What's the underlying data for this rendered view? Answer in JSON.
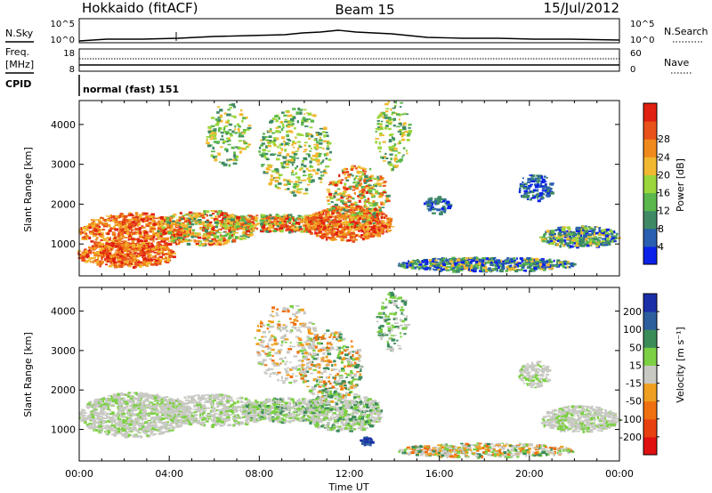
{
  "header": {
    "station": "Hokkaido (fitACF)",
    "beam": "Beam 15",
    "date": "15/Jul/2012"
  },
  "top_panels": {
    "nsky": {
      "label": "N.Sky",
      "ticks": [
        "10^5",
        "10^0"
      ]
    },
    "nsearch": {
      "label": "N.Search",
      "ticks": [
        "10^5",
        "10^0"
      ]
    },
    "freq": {
      "label_line1": "Freq.",
      "label_line2": "[MHz]",
      "ticks": [
        "18",
        "8"
      ]
    },
    "nave": {
      "label": "Nave",
      "ticks": [
        "60",
        "0"
      ]
    },
    "cpid": {
      "label": "CPID",
      "value": "normal (fast) 151"
    }
  },
  "chart_data": [
    {
      "type": "heatmap",
      "title": "",
      "xlabel": "Time UT",
      "ylabel": "Slant Range [km]",
      "x_ticks": [
        "00:00",
        "04:00",
        "08:00",
        "12:00",
        "16:00",
        "20:00",
        "00:00"
      ],
      "y_ticks": [
        1000,
        2000,
        3000,
        4000
      ],
      "ylim": [
        200,
        4600
      ],
      "colorbar": {
        "label": "Power [dB]",
        "ticks": [
          4,
          8,
          12,
          16,
          20,
          24,
          28
        ],
        "colors": [
          "#0a22e8",
          "#2a5fb0",
          "#3f8a64",
          "#5bb84c",
          "#9bd63a",
          "#f2b830",
          "#f08a1c",
          "#e8521a",
          "#e02010"
        ]
      }
    },
    {
      "type": "heatmap",
      "title": "",
      "xlabel": "Time UT",
      "ylabel": "Slant Range [km]",
      "x_ticks": [
        "00:00",
        "04:00",
        "08:00",
        "12:00",
        "16:00",
        "20:00",
        "00:00"
      ],
      "y_ticks": [
        1000,
        2000,
        3000,
        4000
      ],
      "ylim": [
        200,
        4600
      ],
      "colorbar": {
        "label": "Velocity [m s⁻¹]",
        "ticks": [
          200,
          100,
          50,
          15,
          -15,
          -50,
          -100,
          -200
        ],
        "colors": [
          "#1a2fa8",
          "#2d5f9e",
          "#3c8c5a",
          "#7cd044",
          "#c9c9c4",
          "#f0a020",
          "#f07010",
          "#e84010",
          "#e01010"
        ]
      }
    }
  ]
}
